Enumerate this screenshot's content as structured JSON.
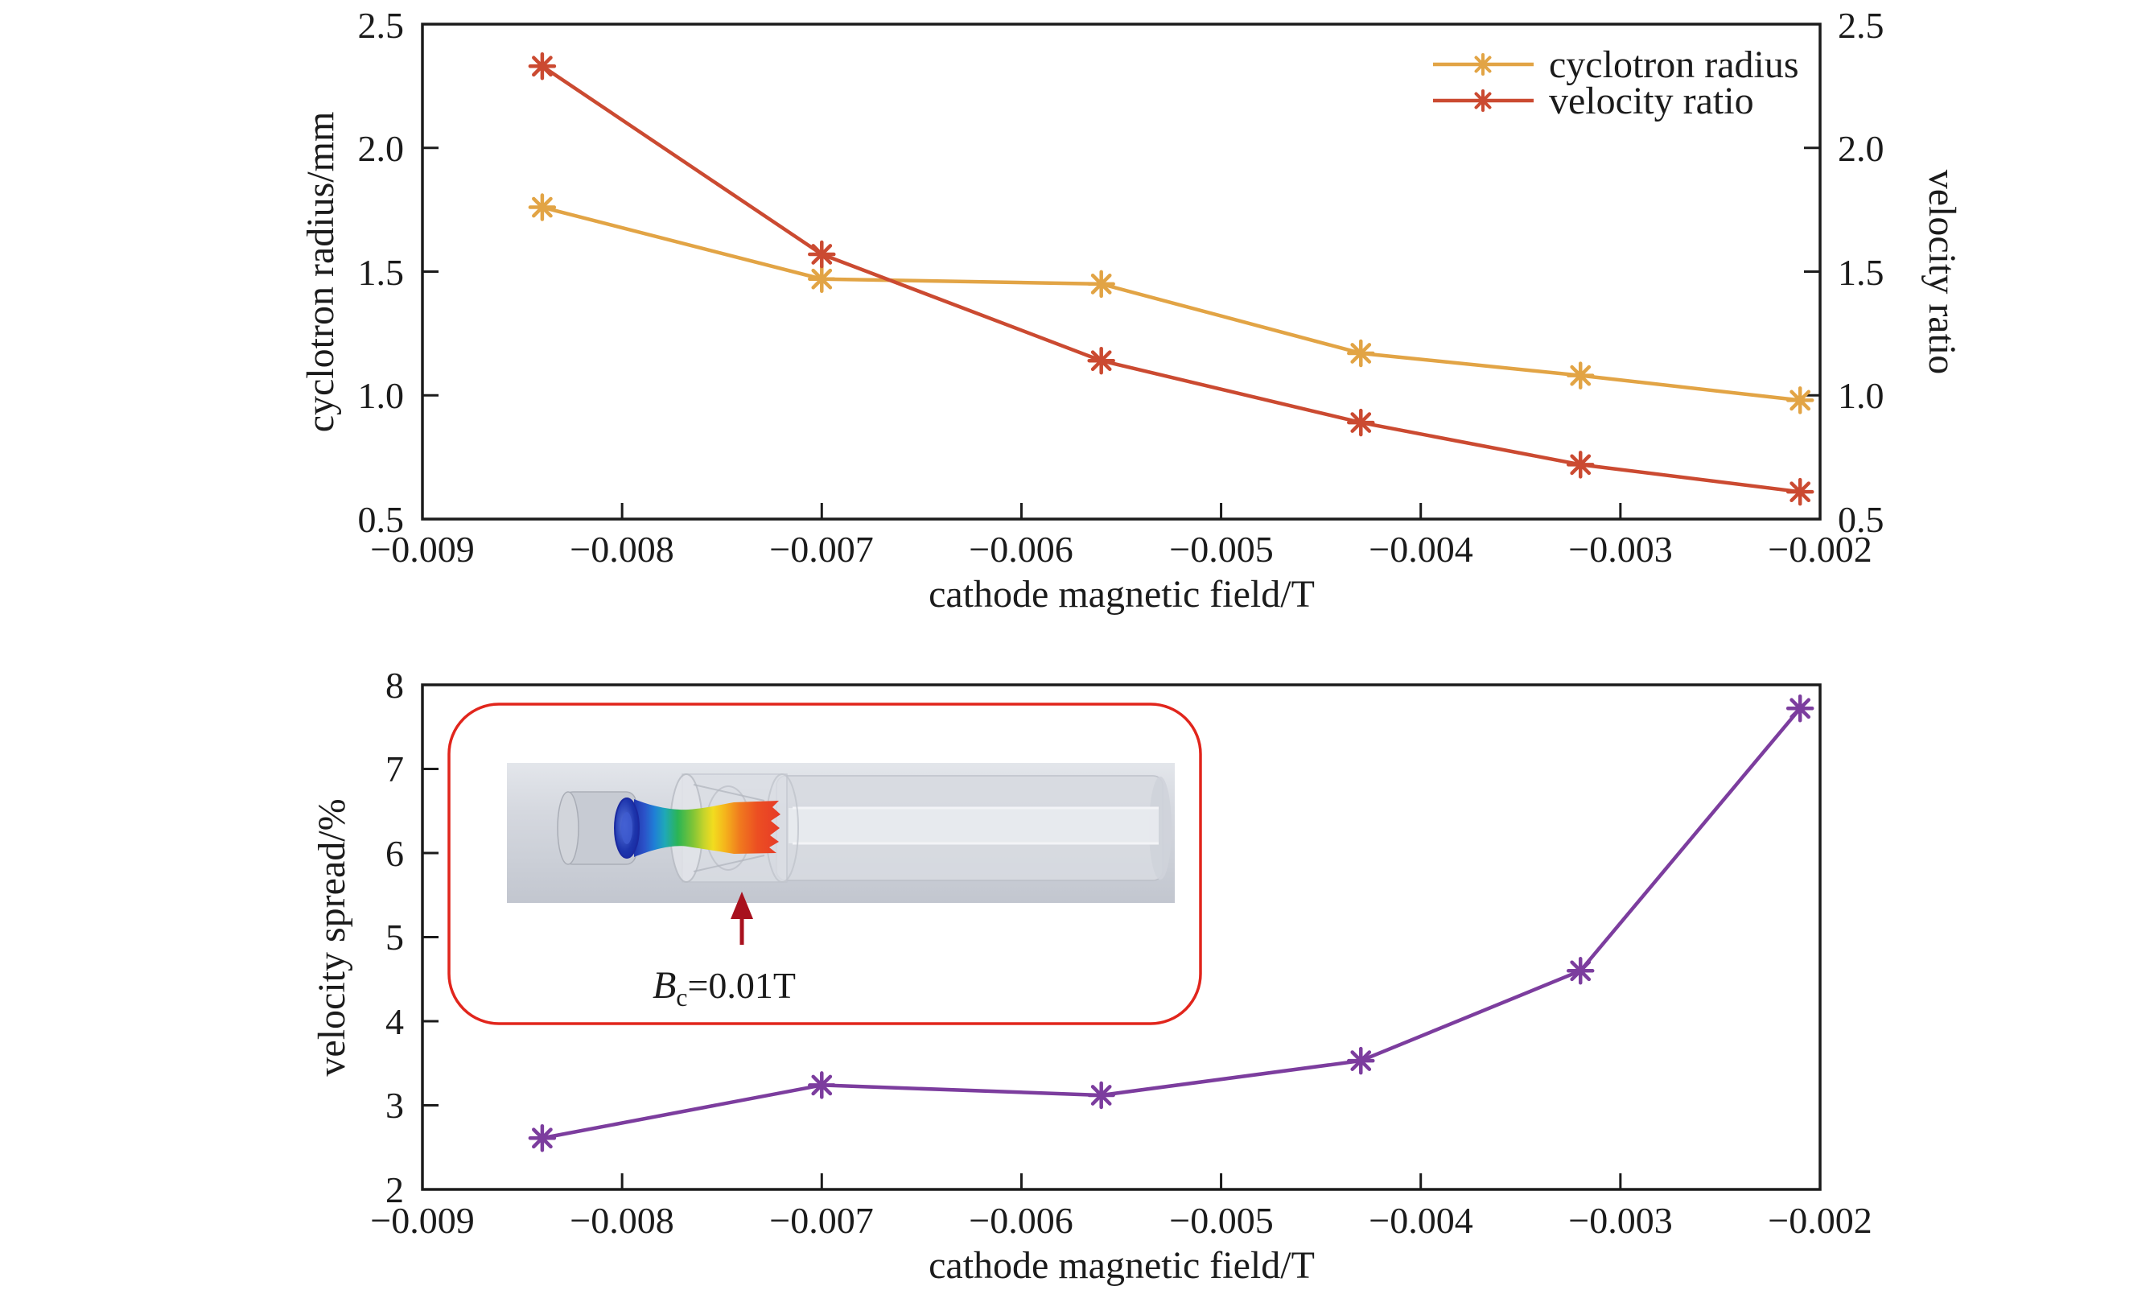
{
  "figure": {
    "background": "#ffffff",
    "axis_color": "#1b1b1b"
  },
  "chart_data": [
    {
      "id": "top-chart",
      "type": "line",
      "xlabel": "cathode magnetic field/T",
      "ylabel_left": "cyclotron radius/mm",
      "ylabel_right": "velocity ratio",
      "xlim": [
        -0.009,
        -0.002
      ],
      "ylim_left": [
        0.5,
        2.5
      ],
      "ylim_right": [
        0.5,
        2.5
      ],
      "grid": false,
      "x_tick_values": [
        -0.009,
        -0.008,
        -0.007,
        -0.006,
        -0.005,
        -0.004,
        -0.003,
        -0.002
      ],
      "x_tick_labels": [
        "−0.009",
        "−0.008",
        "−0.007",
        "−0.006",
        "−0.005",
        "−0.004",
        "−0.003",
        "−0.002"
      ],
      "y_tick_values": [
        0.5,
        1.0,
        1.5,
        2.0,
        2.5
      ],
      "y_tick_labels_left": [
        "0.5",
        "1.0",
        "1.5",
        "2.0",
        "2.5"
      ],
      "y_tick_labels_right": [
        "0.5",
        "1.0",
        "1.5",
        "2.0",
        "2.5"
      ],
      "x": [
        -0.0084,
        -0.007,
        -0.0056,
        -0.0043,
        -0.0032,
        -0.0021
      ],
      "series": [
        {
          "name": "cyclotron radius",
          "color": "#E2A445",
          "marker": "asterisk",
          "values": [
            1.76,
            1.47,
            1.45,
            1.17,
            1.08,
            0.98
          ]
        },
        {
          "name": "velocity ratio",
          "color": "#CB4A31",
          "marker": "asterisk",
          "values": [
            2.33,
            1.57,
            1.14,
            0.89,
            0.72,
            0.61
          ]
        }
      ],
      "legend": {
        "position": "upper right",
        "entries": [
          "cyclotron radius",
          "velocity ratio"
        ]
      }
    },
    {
      "id": "bottom-chart",
      "type": "line",
      "xlabel": "cathode magnetic field/T",
      "ylabel_left": "velocity spread/%",
      "xlim": [
        -0.009,
        -0.002
      ],
      "ylim_left": [
        2,
        8
      ],
      "grid": false,
      "x_tick_values": [
        -0.009,
        -0.008,
        -0.007,
        -0.006,
        -0.005,
        -0.004,
        -0.003,
        -0.002
      ],
      "x_tick_labels": [
        "−0.009",
        "−0.008",
        "−0.007",
        "−0.006",
        "−0.005",
        "−0.004",
        "−0.003",
        "−0.002"
      ],
      "y_tick_values": [
        2,
        3,
        4,
        5,
        6,
        7,
        8
      ],
      "y_tick_labels_left": [
        "2",
        "3",
        "4",
        "5",
        "6",
        "7",
        "8"
      ],
      "x": [
        -0.0084,
        -0.007,
        -0.0056,
        -0.0043,
        -0.0032,
        -0.0021
      ],
      "series": [
        {
          "name": "velocity spread",
          "color": "#7C3D9E",
          "marker": "asterisk",
          "values": [
            2.61,
            3.24,
            3.12,
            3.53,
            4.6,
            7.72
          ]
        }
      ],
      "inset": {
        "border_color": "#E1251C",
        "arrow_color": "#A8111E",
        "label": {
          "var": "B",
          "sub": "c",
          "rest": "=0.01T"
        },
        "description": "3D electron-gun simulation with rainbow-colored beam"
      }
    }
  ]
}
